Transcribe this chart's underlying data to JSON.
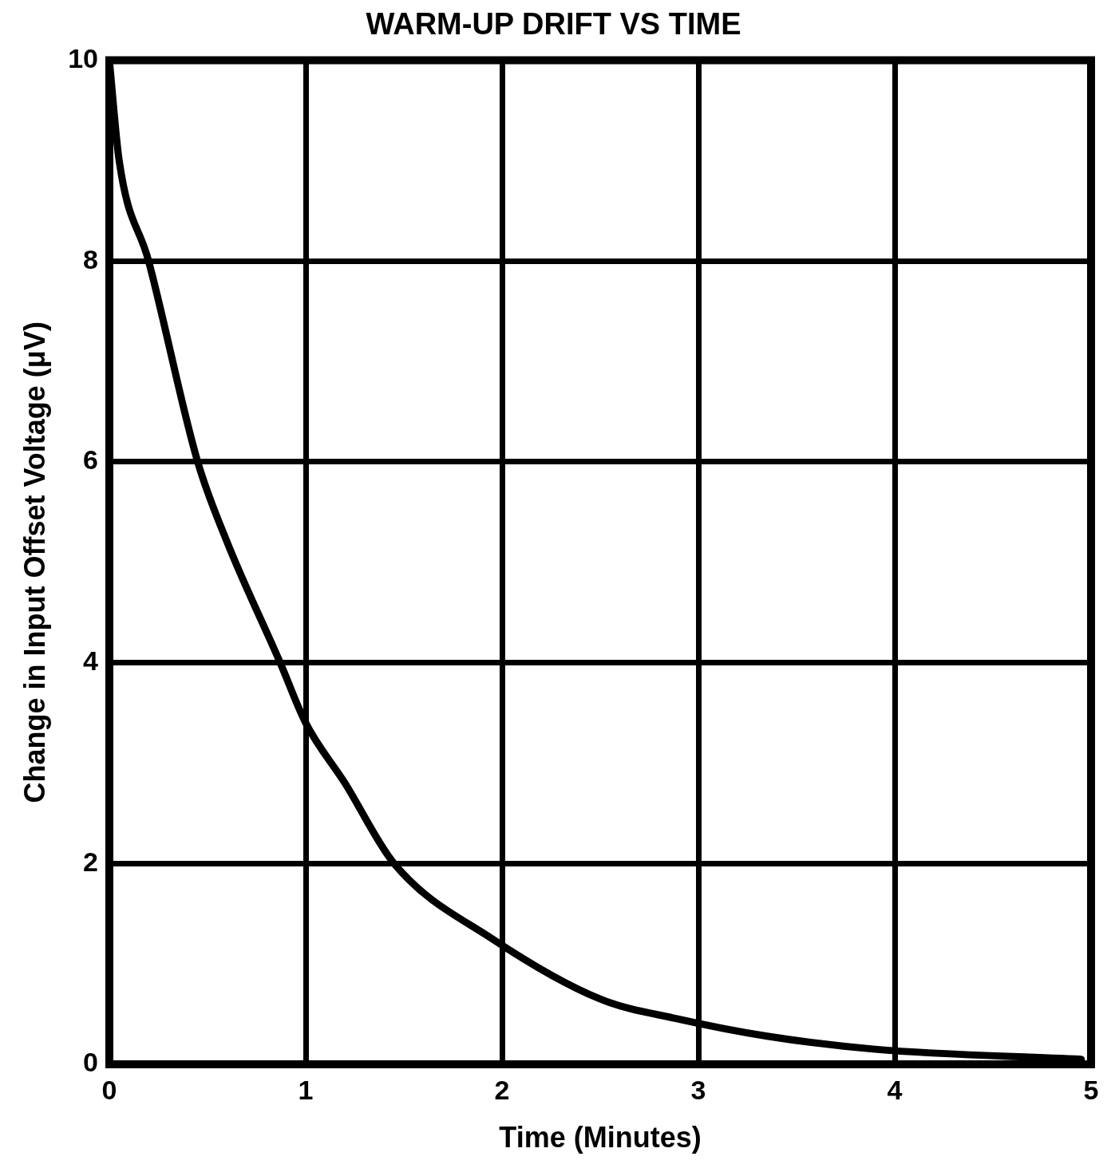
{
  "chart_data": {
    "type": "line",
    "title": "WARM-UP DRIFT VS TIME",
    "xlabel": "Time (Minutes)",
    "ylabel": "Change in Input Offset Voltage (μV)",
    "series": [
      {
        "color": "#000000",
        "x": [
          0,
          0.05,
          0.2,
          0.45,
          0.6,
          0.87,
          1.0,
          1.2,
          1.45,
          1.95,
          2.5,
          2.9,
          3.35,
          3.9,
          4.95
        ],
        "values": [
          10,
          9,
          8,
          6,
          5.2,
          4,
          3.4,
          2.8,
          2,
          1.25,
          0.65,
          0.45,
          0.28,
          0.15,
          0.05
        ]
      }
    ],
    "xlim": [
      0,
      5
    ],
    "xticks": [
      0,
      1,
      2,
      3,
      4,
      5
    ],
    "ylim": [
      0,
      10
    ],
    "yticks": [
      0,
      2,
      4,
      6,
      8,
      10
    ],
    "grid": true,
    "legend": false,
    "marker": "none",
    "line_style": "solid"
  }
}
